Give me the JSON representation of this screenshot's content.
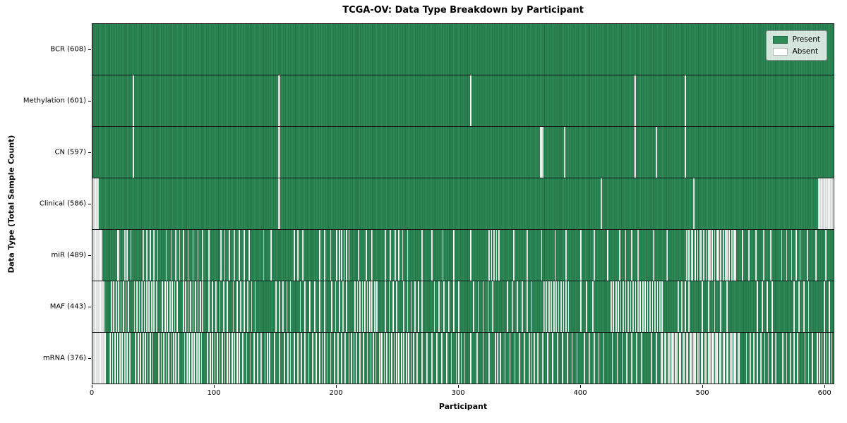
{
  "title": "TCGA-OV: Data Type Breakdown by Participant",
  "xlabel": "Participant",
  "ylabel": "Data Type (Total Sample Count)",
  "legend": {
    "present_label": "Present",
    "absent_label": "Absent"
  },
  "colors": {
    "present": "#2e8b57",
    "absent": "#fdfdfd",
    "background": "#ffffff"
  },
  "chart_data": {
    "type": "heatmap",
    "title": "TCGA-OV: Data Type Breakdown by Participant",
    "xlabel": "Participant",
    "ylabel": "Data Type (Total Sample Count)",
    "legend_entries": [
      "Present",
      "Absent"
    ],
    "legend_position": "upper right",
    "grid": false,
    "n_participants": 608,
    "xlim": [
      0,
      608
    ],
    "x_ticks": [
      0,
      100,
      200,
      300,
      400,
      500,
      600
    ],
    "rows": [
      {
        "name": "BCR",
        "label": "BCR (608)",
        "present_count": 608,
        "absent_participants": []
      },
      {
        "name": "Methylation",
        "label": "Methylation (601)",
        "present_count": 601,
        "absent_participants": [
          33,
          152,
          153,
          310,
          444,
          445,
          486
        ]
      },
      {
        "name": "CN",
        "label": "CN (597)",
        "present_count": 597,
        "absent_participants": [
          33,
          152,
          153,
          367,
          368,
          369,
          387,
          444,
          445,
          462,
          486
        ]
      },
      {
        "name": "Clinical",
        "label": "Clinical (586)",
        "present_count": 586,
        "absent_participants": [
          0,
          1,
          2,
          3,
          4,
          152,
          153,
          417,
          493,
          595,
          596,
          597,
          598,
          599,
          600,
          601,
          602,
          603,
          604,
          605,
          606,
          607
        ]
      },
      {
        "name": "miR",
        "label": "miR (489)",
        "present_count": 489,
        "absent_participants": [
          0,
          1,
          2,
          3,
          4,
          5,
          6,
          7,
          20,
          21,
          26,
          28,
          31,
          41,
          44,
          47,
          50,
          53,
          60,
          64,
          68,
          71,
          74,
          78,
          82,
          86,
          90,
          95,
          105,
          108,
          112,
          116,
          120,
          124,
          128,
          140,
          146,
          165,
          168,
          172,
          186,
          190,
          195,
          200,
          202,
          204,
          206,
          208,
          210,
          218,
          224,
          229,
          240,
          244,
          248,
          251,
          254,
          258,
          270,
          278,
          287,
          296,
          310,
          325,
          327,
          329,
          331,
          333,
          345,
          356,
          368,
          379,
          388,
          400,
          411,
          422,
          432,
          437,
          442,
          447,
          460,
          471,
          487,
          489,
          491,
          492,
          494,
          496,
          498,
          499,
          501,
          503,
          505,
          506,
          508,
          510,
          512,
          513,
          515,
          517,
          519,
          520,
          522,
          524,
          526,
          527,
          533,
          538,
          544,
          550,
          556,
          565,
          569,
          573,
          577,
          580,
          586,
          593,
          601
        ]
      },
      {
        "name": "MAF",
        "label": "MAF (443)",
        "present_count": 443,
        "absent_participants": [
          0,
          1,
          2,
          3,
          4,
          5,
          6,
          7,
          8,
          9,
          15,
          17,
          19,
          21,
          23,
          25,
          27,
          29,
          34,
          36,
          38,
          40,
          42,
          44,
          46,
          48,
          50,
          52,
          57,
          59,
          61,
          63,
          65,
          67,
          69,
          74,
          76,
          78,
          80,
          82,
          84,
          86,
          88,
          90,
          95,
          98,
          101,
          104,
          107,
          110,
          115,
          118,
          121,
          124,
          127,
          130,
          133,
          150,
          153,
          156,
          159,
          162,
          170,
          174,
          178,
          182,
          186,
          190,
          196,
          199,
          202,
          205,
          208,
          215,
          217,
          219,
          221,
          223,
          225,
          227,
          229,
          231,
          233,
          240,
          243,
          246,
          249,
          255,
          258,
          261,
          264,
          267,
          270,
          280,
          284,
          288,
          292,
          296,
          300,
          312,
          316,
          320,
          324,
          328,
          340,
          344,
          348,
          352,
          356,
          360,
          370,
          372,
          374,
          376,
          378,
          380,
          382,
          384,
          386,
          388,
          390,
          400,
          405,
          410,
          425,
          427,
          429,
          431,
          433,
          435,
          437,
          439,
          441,
          443,
          445,
          447,
          449,
          451,
          453,
          455,
          457,
          459,
          461,
          463,
          465,
          467,
          480,
          483,
          486,
          489,
          500,
          505,
          510,
          515,
          520,
          545,
          549,
          553,
          557,
          575,
          579,
          583,
          587,
          600,
          604
        ]
      },
      {
        "name": "mRNA",
        "label": "mRNA (376)",
        "present_count": 376,
        "absent_participants": [
          0,
          1,
          2,
          3,
          4,
          5,
          6,
          7,
          8,
          9,
          10,
          14,
          16,
          18,
          20,
          22,
          24,
          26,
          28,
          30,
          35,
          37,
          39,
          41,
          43,
          45,
          47,
          49,
          54,
          56,
          58,
          60,
          62,
          64,
          66,
          68,
          70,
          75,
          77,
          79,
          81,
          83,
          85,
          87,
          89,
          94,
          96,
          98,
          100,
          102,
          104,
          106,
          108,
          110,
          112,
          114,
          116,
          118,
          120,
          123,
          126,
          129,
          132,
          135,
          138,
          141,
          143,
          145,
          149,
          153,
          157,
          160,
          162,
          165,
          168,
          171,
          174,
          177,
          180,
          183,
          186,
          188,
          190,
          192,
          195,
          198,
          201,
          204,
          207,
          210,
          212,
          214,
          216,
          219,
          222,
          225,
          228,
          230,
          232,
          235,
          237,
          239,
          241,
          243,
          245,
          247,
          249,
          251,
          253,
          255,
          257,
          259,
          261,
          263,
          266,
          270,
          274,
          278,
          282,
          286,
          290,
          294,
          298,
          300,
          302,
          305,
          310,
          315,
          320,
          325,
          330,
          332,
          334,
          338,
          342,
          346,
          350,
          354,
          358,
          360,
          362,
          365,
          369,
          373,
          377,
          381,
          385,
          389,
          393,
          397,
          403,
          407,
          411,
          415,
          419,
          426,
          430,
          434,
          438,
          442,
          446,
          450,
          458,
          462,
          466,
          467,
          469,
          470,
          472,
          473,
          475,
          476,
          478,
          479,
          481,
          482,
          484,
          485,
          487,
          488,
          490,
          491,
          493,
          494,
          496,
          497,
          499,
          500,
          502,
          503,
          505,
          506,
          508,
          509,
          511,
          512,
          514,
          515,
          517,
          518,
          520,
          521,
          523,
          524,
          526,
          527,
          529,
          530,
          536,
          539,
          542,
          545,
          548,
          551,
          554,
          557,
          560,
          566,
          569,
          572,
          575,
          578,
          584,
          587,
          590,
          594,
          596,
          598,
          600,
          602,
          604,
          606
        ]
      }
    ]
  }
}
